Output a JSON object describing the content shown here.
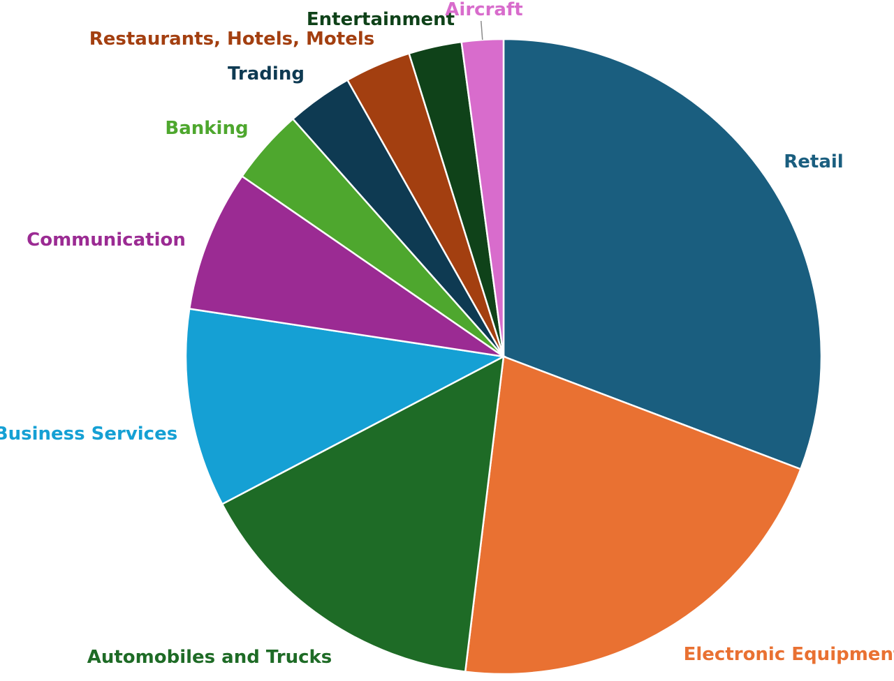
{
  "chart_data": {
    "type": "pie",
    "start_angle_deg": 0,
    "direction": "clockwise",
    "categories": [
      "Retail",
      "Electronic Equipment",
      "Automobiles and Trucks",
      "Business Services",
      "Communication",
      "Banking",
      "Trading",
      "Restaurants, Hotels, Motels",
      "Entertainment",
      "Aircraft"
    ],
    "values": [
      32.0,
      22.0,
      16.0,
      10.5,
      7.5,
      4.0,
      3.5,
      3.5,
      2.8,
      2.2
    ],
    "colors": [
      "#1a5e7f",
      "#e97132",
      "#1e6b26",
      "#15a0d4",
      "#9b2b93",
      "#4ea72e",
      "#0e3a52",
      "#a33f10",
      "#0f4219",
      "#d86ccc"
    ],
    "label_colors": [
      "#1a5e7f",
      "#e97132",
      "#1e6b26",
      "#15a0d4",
      "#9b2b93",
      "#4ea72e",
      "#0e3a52",
      "#a33f10",
      "#0f4219",
      "#d86ccc"
    ],
    "title": "",
    "legend": "none"
  }
}
